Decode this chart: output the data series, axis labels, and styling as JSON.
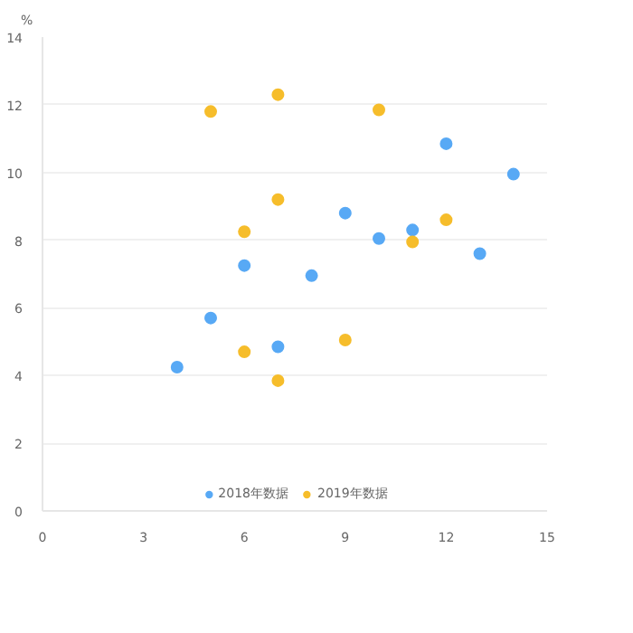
{
  "chart_data": {
    "type": "scatter",
    "ylabel": "%",
    "xlim": [
      0,
      15
    ],
    "xticks": [
      0,
      3,
      6,
      9,
      12,
      15
    ],
    "ylim": [
      0,
      14
    ],
    "yticks": [
      0,
      2,
      4,
      6,
      8,
      10,
      12,
      14
    ],
    "grid": "y",
    "legend": "bottom",
    "marker": "circle",
    "series": [
      {
        "name": "2018年数据",
        "color": "#58a9f5",
        "x": [
          4,
          5,
          6,
          7,
          8,
          9,
          10,
          11,
          12,
          13,
          14
        ],
        "values": [
          4.25,
          5.7,
          7.25,
          4.85,
          6.95,
          8.8,
          8.05,
          8.3,
          10.85,
          7.6,
          9.95
        ]
      },
      {
        "name": "2019年数据",
        "color": "#f6bd2b",
        "x": [
          5,
          6,
          6,
          7,
          7,
          7,
          9,
          10,
          11,
          12
        ],
        "values": [
          11.8,
          8.25,
          4.7,
          12.3,
          9.2,
          3.85,
          5.05,
          11.85,
          7.95,
          8.6
        ]
      }
    ]
  }
}
